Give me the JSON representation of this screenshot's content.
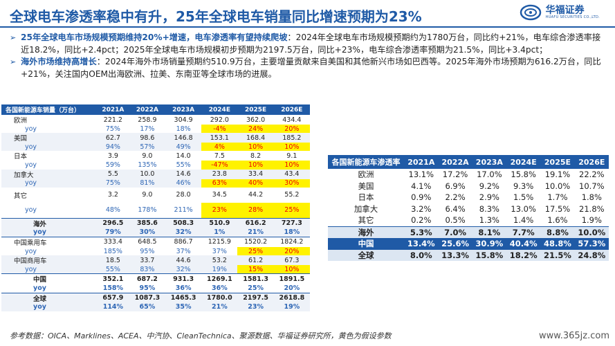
{
  "title": "全球电车渗透率稳中有升，25年全球电车销量同比增速预期为23%",
  "logo": {
    "name": "华福证券",
    "sub": "HUAFU SECURITIES CO.,LTD."
  },
  "bullets": [
    {
      "head": "25年全球电车市场规模预期维持20%+增速，电车渗透率有望持续爬坡",
      "body": "：2024年全球电车市场规模预期约为1780万台，同比约+21%，电车综合渗透率接近18.2%，同比+2.4pct；2025年全球电车市场规模初步预期为2197.5万台，同比+23%，电车综合渗透率预期为21.5%，同比+3.4pct；"
    },
    {
      "head": "海外市场维持高增长",
      "body": "：2024年海外市场销量预期约510.9万台，主要增量贡献来自美国和其他新兴市场如巴西等。2025年海外市场预期为616.2万台，同比+21%，关注国内OEM出海欧洲、拉美、东南亚等全球市场的进展。"
    }
  ],
  "sales_table": {
    "header": [
      "各国新能源车销量（万台）",
      "2021A",
      "2022A",
      "2023A",
      "2024E",
      "2025E",
      "2026E"
    ],
    "rows": [
      {
        "label": "欧洲",
        "values": [
          "221.2",
          "258.9",
          "304.9",
          "292.0",
          "362.0",
          "434.4"
        ]
      },
      {
        "label": "yoy",
        "values": [
          "75%",
          "17%",
          "18%",
          "-4%",
          "24%",
          "20%"
        ]
      },
      {
        "label": "美国",
        "values": [
          "62.7",
          "98.6",
          "146.8",
          "153.1",
          "168.4",
          "185.2"
        ]
      },
      {
        "label": "yoy",
        "values": [
          "94%",
          "57%",
          "49%",
          "4%",
          "10%",
          "10%"
        ]
      },
      {
        "label": "日本",
        "values": [
          "3.9",
          "9.0",
          "14.0",
          "7.5",
          "8.2",
          "9.1"
        ]
      },
      {
        "label": "yoy",
        "values": [
          "59%",
          "135%",
          "55%",
          "-47%",
          "10%",
          "10%"
        ]
      },
      {
        "label": "加拿大",
        "values": [
          "5.5",
          "10.0",
          "14.6",
          "23.8",
          "33.4",
          "43.4"
        ]
      },
      {
        "label": "yoy",
        "values": [
          "75%",
          "81%",
          "46%",
          "63%",
          "40%",
          "30%"
        ]
      },
      {
        "label": "其它",
        "values": [
          "3.2",
          "9.0",
          "28.0",
          "34.5",
          "44.2",
          "55.2"
        ]
      },
      {
        "label": "yoy",
        "values": [
          "48%",
          "178%",
          "211%",
          "23%",
          "28%",
          "25%"
        ]
      },
      {
        "label": "海外",
        "values": [
          "296.5",
          "385.6",
          "508.3",
          "510.9",
          "616.2",
          "727.3"
        ]
      },
      {
        "label": "yoy",
        "values": [
          "79%",
          "30%",
          "32%",
          "1%",
          "21%",
          "18%"
        ]
      },
      {
        "label": "中国乘用车",
        "values": [
          "333.4",
          "648.5",
          "886.7",
          "1215.9",
          "1520.2",
          "1824.2"
        ]
      },
      {
        "label": "yoy",
        "values": [
          "185%",
          "95%",
          "37%",
          "37%",
          "25%",
          "20%"
        ]
      },
      {
        "label": "中国商用车",
        "values": [
          "18.5",
          "33.7",
          "44.6",
          "53.2",
          "61.2",
          "67.3"
        ]
      },
      {
        "label": "yoy",
        "values": [
          "55%",
          "83%",
          "32%",
          "19%",
          "15%",
          "10%"
        ]
      },
      {
        "label": "中国",
        "values": [
          "352.1",
          "687.2",
          "931.3",
          "1269.1",
          "1581.3",
          "1891.5"
        ]
      },
      {
        "label": "yoy",
        "values": [
          "158%",
          "95%",
          "36%",
          "36%",
          "25%",
          "20%"
        ]
      },
      {
        "label": "全球",
        "values": [
          "657.9",
          "1087.3",
          "1465.3",
          "1780.0",
          "2197.5",
          "2618.8"
        ]
      },
      {
        "label": "yoy",
        "values": [
          "114%",
          "65%",
          "35%",
          "21%",
          "23%",
          "19%"
        ]
      }
    ]
  },
  "penetration_table": {
    "header": [
      "各国新能源车渗透率",
      "2021A",
      "2022A",
      "2023A",
      "2024E",
      "2025E",
      "2026E"
    ],
    "rows": [
      {
        "label": "欧洲",
        "values": [
          "13.1%",
          "17.2%",
          "17.0%",
          "15.8%",
          "19.1%",
          "22.2%"
        ]
      },
      {
        "label": "美国",
        "values": [
          "4.1%",
          "6.9%",
          "9.2%",
          "9.3%",
          "10.0%",
          "10.7%"
        ]
      },
      {
        "label": "日本",
        "values": [
          "0.9%",
          "2.2%",
          "2.9%",
          "1.5%",
          "1.7%",
          "1.8%"
        ]
      },
      {
        "label": "加拿大",
        "values": [
          "3.2%",
          "6.4%",
          "8.3%",
          "13.0%",
          "17.5%",
          "21.8%"
        ]
      },
      {
        "label": "其它",
        "values": [
          "0.2%",
          "0.5%",
          "1.3%",
          "1.4%",
          "1.6%",
          "1.9%"
        ]
      },
      {
        "label": "海外",
        "values": [
          "5.3%",
          "7.0%",
          "8.1%",
          "7.7%",
          "8.8%",
          "10.0%"
        ]
      },
      {
        "label": "中国",
        "values": [
          "13.4%",
          "25.6%",
          "30.9%",
          "40.4%",
          "48.8%",
          "57.3%"
        ]
      },
      {
        "label": "全球",
        "values": [
          "8.0%",
          "13.3%",
          "15.8%",
          "18.2%",
          "21.5%",
          "24.8%"
        ]
      }
    ]
  },
  "footnote": "参考数据：OICA、Marklines、ACEA、中汽协、CleanTechnica、聚源数据、华福证券研究所，黄色为假设参数",
  "watermark": "www.365jz.com",
  "colors": {
    "brand": "#1f5aa6",
    "highlight": "#fff200",
    "highlight_text": "#e00000"
  }
}
